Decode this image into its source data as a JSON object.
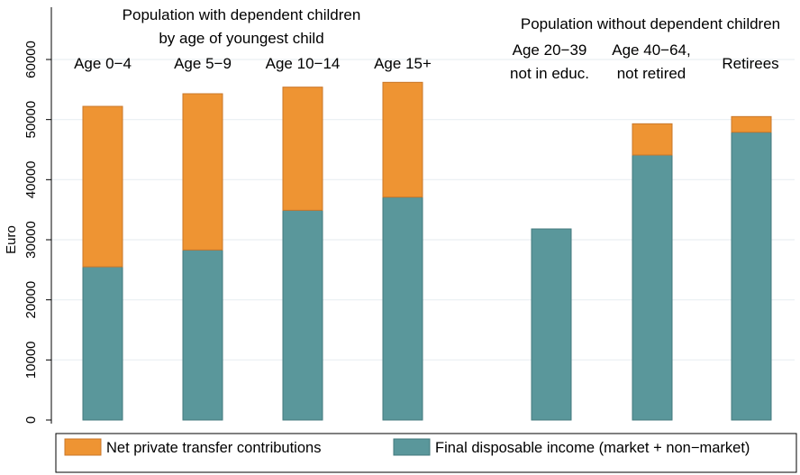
{
  "chart_data": {
    "type": "bar",
    "stacked": true,
    "ylabel": "Euro",
    "ylim": [
      0,
      60000
    ],
    "yticks": [
      0,
      10000,
      20000,
      30000,
      40000,
      50000,
      60000
    ],
    "grid": true,
    "legend_position": "bottom",
    "categories": [
      "Age 0−4",
      "Age 5−9",
      "Age 10−14",
      "Age 15+",
      "Age 20−39 not in educ.",
      "Age 40−64, not retired",
      "Retirees"
    ],
    "series": [
      {
        "name": "Final disposable income (market + non−market)",
        "color": "#5a979b",
        "values": [
          25500,
          28300,
          34900,
          37100,
          31800,
          44100,
          47900
        ]
      },
      {
        "name": "Net private transfer contributions",
        "color": "#ee9433",
        "values": [
          26700,
          26000,
          20500,
          19100,
          0,
          5200,
          2600
        ]
      }
    ],
    "group_headers": [
      {
        "lines": [
          "Population with dependent children",
          "by age of youngest child"
        ]
      },
      {
        "lines": [
          "Population without dependent children"
        ]
      }
    ],
    "category_label_lines": [
      [
        "Age 0−4"
      ],
      [
        "Age 5−9"
      ],
      [
        "Age 10−14"
      ],
      [
        "Age 15+"
      ],
      [
        "Age 20−39",
        "not in educ."
      ],
      [
        "Age 40−64,",
        "not retired"
      ],
      [
        "Retirees"
      ]
    ],
    "legend": [
      {
        "label": "Net private transfer contributions",
        "color": "#ee9433"
      },
      {
        "label": "Final disposable income (market + non−market)",
        "color": "#5a979b"
      }
    ]
  }
}
